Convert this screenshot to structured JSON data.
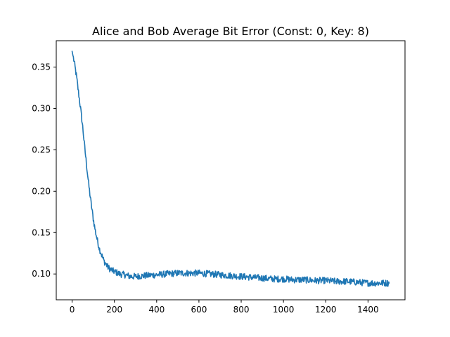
{
  "chart_data": {
    "type": "line",
    "title": "Alice and Bob Average Bit Error (Const: 0, Key: 8)",
    "xlabel": "",
    "ylabel": "",
    "xlim": [
      -75,
      1575
    ],
    "ylim": [
      0.0688,
      0.3818
    ],
    "xticks": [
      0,
      200,
      400,
      600,
      800,
      1000,
      1200,
      1400
    ],
    "yticks": [
      0.1,
      0.15,
      0.2,
      0.25,
      0.3,
      0.35
    ],
    "xtick_labels": [
      "0",
      "200",
      "400",
      "600",
      "800",
      "1000",
      "1200",
      "1400"
    ],
    "ytick_labels": [
      "0.10",
      "0.15",
      "0.20",
      "0.25",
      "0.30",
      "0.35"
    ],
    "grid": false,
    "legend": false,
    "series": [
      {
        "color": "#1f77b4",
        "x": [
          0,
          10,
          20,
          30,
          40,
          50,
          60,
          70,
          80,
          90,
          100,
          110,
          120,
          130,
          140,
          150,
          160,
          170,
          180,
          190,
          200,
          225,
          250,
          275,
          300,
          350,
          400,
          450,
          500,
          550,
          600,
          650,
          700,
          750,
          800,
          850,
          900,
          950,
          1000,
          1050,
          1100,
          1150,
          1200,
          1250,
          1300,
          1350,
          1400,
          1450,
          1500
        ],
        "y": [
          0.369,
          0.356,
          0.34,
          0.32,
          0.3,
          0.278,
          0.252,
          0.228,
          0.205,
          0.185,
          0.167,
          0.152,
          0.14,
          0.13,
          0.123,
          0.116,
          0.112,
          0.108,
          0.106,
          0.104,
          0.103,
          0.1,
          0.099,
          0.097,
          0.097,
          0.098,
          0.099,
          0.1,
          0.101,
          0.101,
          0.101,
          0.1,
          0.099,
          0.098,
          0.097,
          0.096,
          0.095,
          0.094,
          0.094,
          0.093,
          0.093,
          0.092,
          0.092,
          0.091,
          0.091,
          0.09,
          0.089,
          0.089,
          0.089
        ],
        "noise_amplitude": 0.004
      }
    ]
  }
}
